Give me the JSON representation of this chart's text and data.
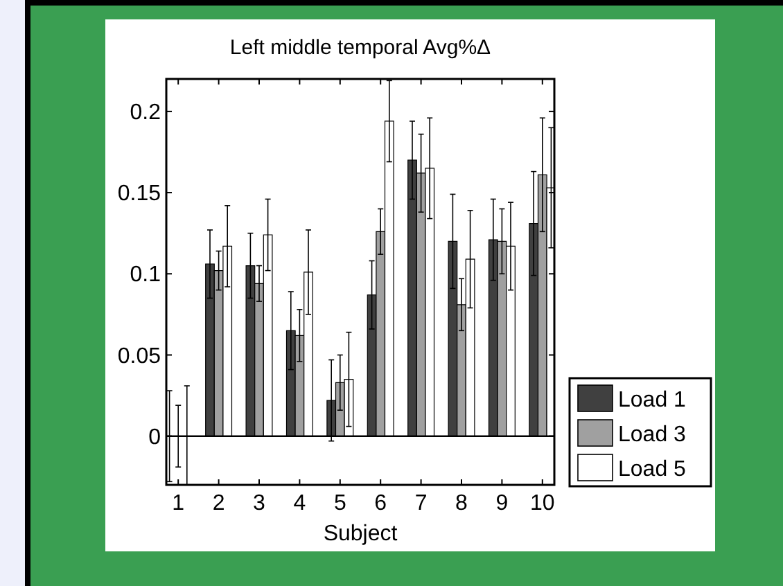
{
  "chart_data": {
    "type": "bar",
    "title": "Left middle temporal Avg%Δ",
    "xlabel": "Subject",
    "categories": [
      "1",
      "2",
      "3",
      "4",
      "5",
      "6",
      "7",
      "8",
      "9",
      "10"
    ],
    "series": [
      {
        "name": "Load 1",
        "color": "#404040",
        "values": [
          0,
          0.106,
          0.105,
          0.065,
          0.022,
          0.087,
          0.17,
          0.12,
          0.121,
          0.131
        ],
        "errors": [
          0.028,
          0.021,
          0.02,
          0.024,
          0.025,
          0.021,
          0.024,
          0.029,
          0.025,
          0.032
        ]
      },
      {
        "name": "Load 3",
        "color": "#a0a0a0",
        "values": [
          0,
          0.102,
          0.094,
          0.062,
          0.033,
          0.126,
          0.162,
          0.081,
          0.12,
          0.161
        ],
        "errors": [
          0.019,
          0.012,
          0.011,
          0.016,
          0.017,
          0.014,
          0.024,
          0.016,
          0.02,
          0.035
        ]
      },
      {
        "name": "Load 5",
        "color": "#ffffff",
        "values": [
          0,
          0.117,
          0.124,
          0.101,
          0.035,
          0.194,
          0.165,
          0.109,
          0.117,
          0.153
        ],
        "errors": [
          [
            -0.03,
            0.031
          ],
          0.025,
          0.022,
          0.026,
          0.029,
          0.025,
          0.031,
          0.03,
          0.027,
          0.037
        ]
      }
    ],
    "ylim": [
      -0.03,
      0.22
    ],
    "yticks": [
      0,
      0.05,
      0.1,
      0.15,
      0.2
    ],
    "grid": false,
    "ref_lines": [
      {
        "axis": "y",
        "value": 0
      }
    ],
    "legend": "bottom right"
  }
}
